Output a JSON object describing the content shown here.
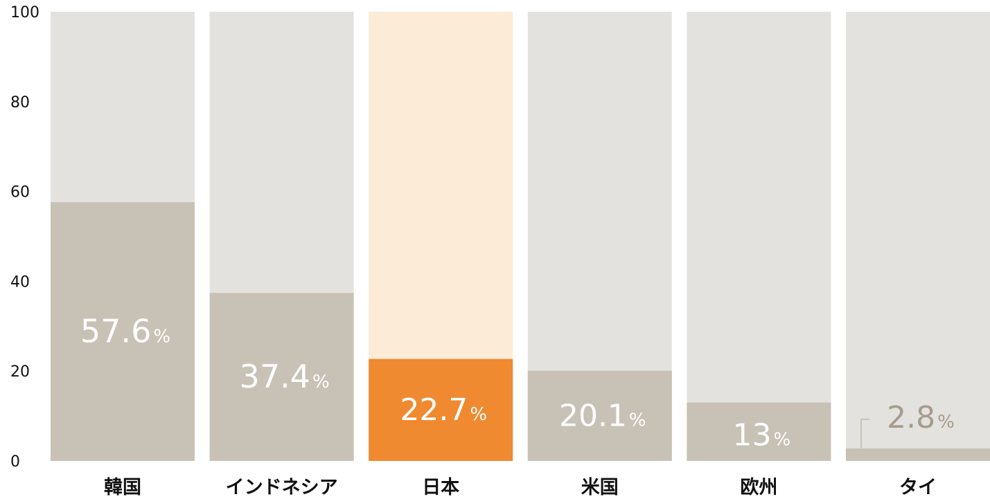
{
  "chart_data": {
    "type": "bar",
    "title": "",
    "xlabel": "",
    "ylabel": "",
    "ylim": [
      0,
      100
    ],
    "yticks": [
      "0",
      "20",
      "40",
      "60",
      "80",
      "100"
    ],
    "categories": [
      "韓国",
      "インドネシア",
      "日本",
      "米国",
      "欧州",
      "タイ"
    ],
    "values": [
      57.6,
      37.4,
      22.7,
      20.1,
      13,
      2.8
    ],
    "value_labels": [
      "57.6",
      "37.4",
      "22.7",
      "20.1",
      "13",
      "2.8"
    ],
    "unit": "%",
    "highlight_index": 2,
    "grid": false,
    "legend": "none"
  },
  "colors": {
    "track": "#e4e2df",
    "bar": "#c8c1b5",
    "highlight_track": "#fcebd6",
    "highlight_bar": "#ef8a30",
    "label_inside": "#ffffff",
    "label_outside": "#a59c8c"
  }
}
